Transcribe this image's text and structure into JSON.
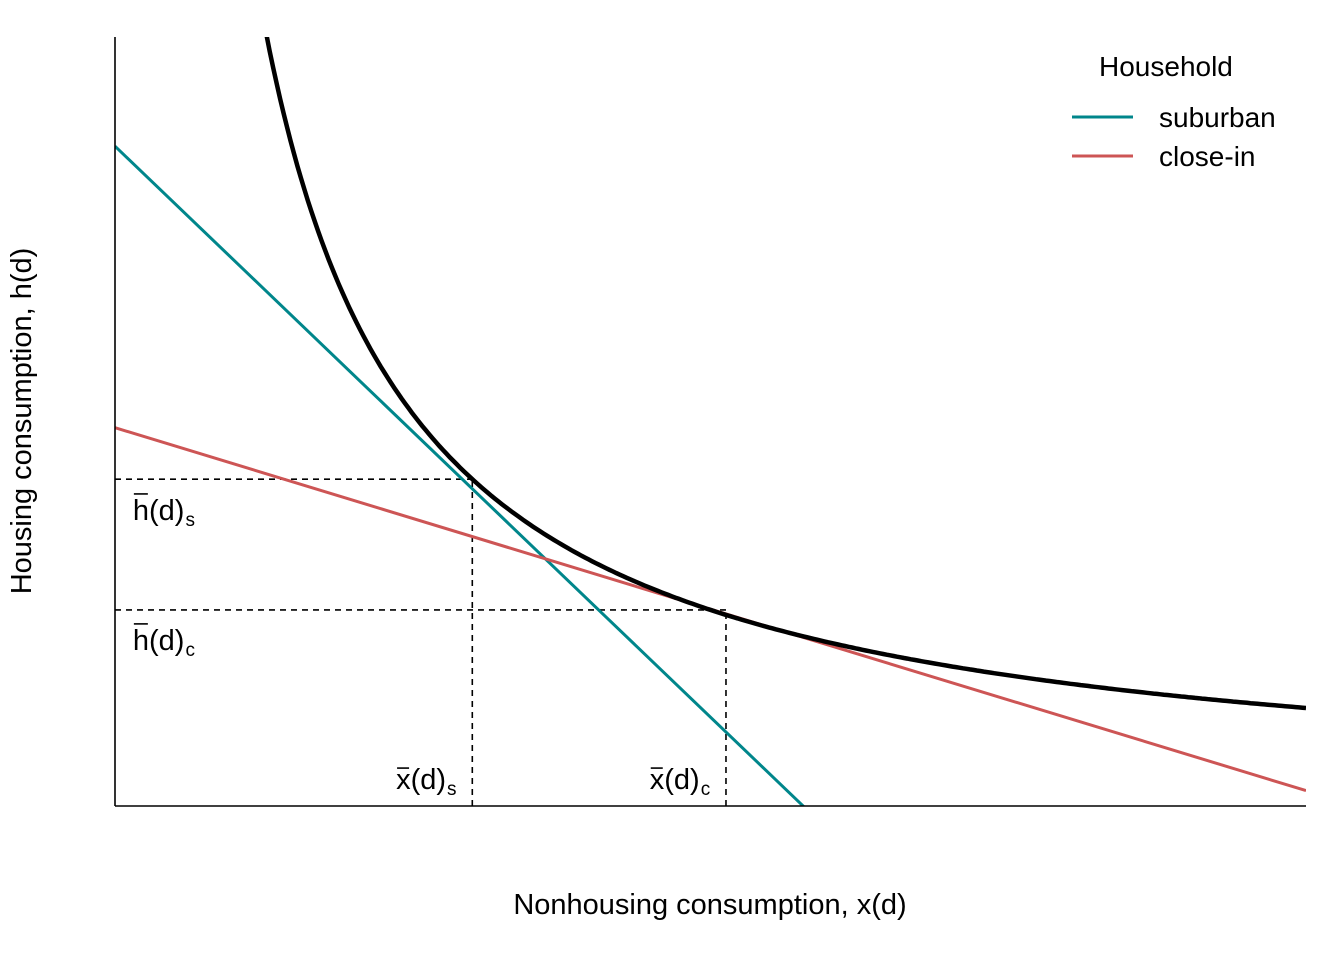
{
  "chart_data": {
    "type": "line",
    "xlabel": "Nonhousing consumption, x(d)",
    "ylabel": "Housing consumption, h(d)",
    "xlim": [
      0,
      10
    ],
    "ylim": [
      0,
      10
    ],
    "grid": false,
    "axis_ticks": false,
    "legend": {
      "title": "Household",
      "position": "top-right",
      "entries": [
        {
          "label": "suburban",
          "color": "#00868B"
        },
        {
          "label": "close-in",
          "color": "#CD5555"
        }
      ]
    },
    "indifference_curve": {
      "equation": "h = k / x",
      "k": 12.75,
      "x_from": 1.27,
      "x_to": 10,
      "color": "#000000"
    },
    "series": [
      {
        "name": "suburban",
        "color": "#00868B",
        "x": [
          0,
          6.04
        ],
        "y": [
          8.58,
          -0.39
        ]
      },
      {
        "name": "close-in",
        "color": "#CD5555",
        "x": [
          0,
          10
        ],
        "y": [
          4.92,
          0.2
        ]
      }
    ],
    "reference_lines": [
      {
        "orientation": "horizontal",
        "y": 4.25,
        "x_from": 0,
        "x_to": 3.0
      },
      {
        "orientation": "horizontal",
        "y": 2.55,
        "x_from": 0,
        "x_to": 5.13
      },
      {
        "orientation": "vertical",
        "x": 3.0,
        "y_from": 0,
        "y_to": 4.25
      },
      {
        "orientation": "vertical",
        "x": 5.13,
        "y_from": 0,
        "y_to": 2.55
      }
    ],
    "annotations": [
      {
        "main": "h",
        "arg": "(d)",
        "sub": "s",
        "x": 0.15,
        "y": 3.72
      },
      {
        "main": "h",
        "arg": "(d)",
        "sub": "c",
        "x": 0.15,
        "y": 2.03
      },
      {
        "main": "x",
        "arg": "(d)",
        "sub": "s",
        "x": 2.36,
        "y": 0.22
      },
      {
        "main": "x",
        "arg": "(d)",
        "sub": "c",
        "x": 4.49,
        "y": 0.22
      }
    ]
  }
}
